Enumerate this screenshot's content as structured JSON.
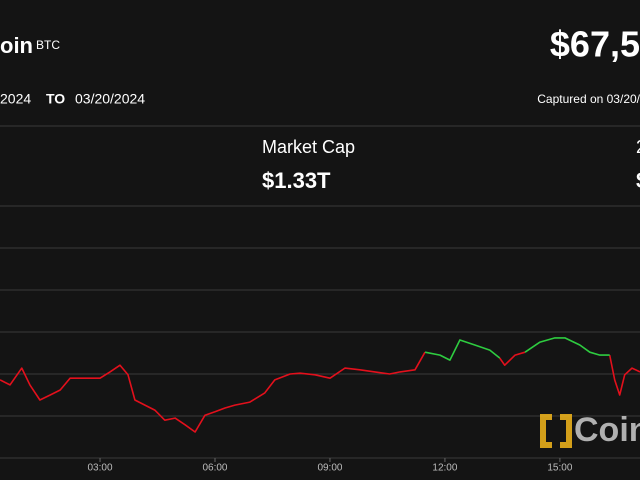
{
  "header": {
    "name": "oin",
    "symbol": "BTC",
    "price": "$67,5",
    "from": "2024",
    "to_label": "TO",
    "to": "03/20/2024",
    "captured": "Captured on 03/20/"
  },
  "stats": [
    {
      "label": "Market Cap",
      "value": "$1.33T"
    },
    {
      "label": "2",
      "value": "$"
    }
  ],
  "watermark": "Coin",
  "chart_data": {
    "type": "line",
    "x": [
      0.39,
      0.65,
      0.96,
      1.17,
      1.43,
      1.7,
      1.96,
      2.22,
      2.61,
      3.0,
      3.26,
      3.52,
      3.73,
      3.91,
      4.17,
      4.43,
      4.69,
      4.96,
      5.22,
      5.48,
      5.74,
      6.0,
      6.26,
      6.52,
      6.91,
      7.3,
      7.56,
      7.96,
      8.22,
      8.61,
      9.0,
      9.39,
      9.78,
      10.17,
      10.56,
      10.83,
      11.22,
      11.48,
      11.87,
      12.13,
      12.39,
      12.78,
      13.17,
      13.43,
      13.56,
      13.83,
      14.09,
      14.48,
      14.87,
      15.13,
      15.52,
      15.78,
      16.04,
      16.3,
      16.43,
      16.56,
      16.69,
      16.88,
      17.09
    ],
    "series": [
      {
        "color": "#e3101c",
        "values": [
          1.86,
          1.74,
          2.14,
          1.74,
          1.38,
          1.5,
          1.62,
          1.9,
          1.9,
          1.9,
          2.05,
          2.21,
          1.98,
          1.38,
          1.26,
          1.14,
          0.9,
          0.95,
          0.79,
          0.62,
          1.02,
          1.1,
          1.19,
          1.26,
          1.33,
          1.55,
          1.86,
          2.0,
          2.02,
          1.98,
          1.9,
          2.14,
          2.1,
          2.05,
          2.0,
          2.05,
          2.1,
          2.52,
          null,
          null,
          null,
          null,
          null,
          2.38,
          2.21,
          2.45,
          2.52,
          null,
          null,
          null,
          null,
          null,
          null,
          2.45,
          1.86,
          1.5,
          1.98,
          2.14,
          2.05
        ]
      },
      {
        "color": "#2ecc40",
        "values": [
          null,
          null,
          null,
          null,
          null,
          null,
          null,
          null,
          null,
          null,
          null,
          null,
          null,
          null,
          null,
          null,
          null,
          null,
          null,
          null,
          null,
          null,
          null,
          null,
          null,
          null,
          null,
          null,
          null,
          null,
          null,
          null,
          null,
          null,
          null,
          null,
          null,
          2.52,
          2.45,
          2.33,
          2.81,
          2.69,
          2.57,
          2.38,
          null,
          null,
          2.52,
          2.76,
          2.86,
          2.86,
          2.69,
          2.52,
          2.45,
          2.45,
          null,
          null,
          null,
          null,
          null
        ]
      }
    ],
    "xlim": [
      0.39,
      17.09
    ],
    "xticks": [
      {
        "value": 3,
        "label": "03:00"
      },
      {
        "value": 6,
        "label": "06:00"
      },
      {
        "value": 9,
        "label": "09:00"
      },
      {
        "value": 12,
        "label": "12:00"
      },
      {
        "value": 15,
        "label": "15:00"
      }
    ],
    "ylim": [
      0,
      6
    ],
    "yticks": [
      0,
      1,
      2,
      3,
      4,
      5,
      6
    ],
    "grid": true
  }
}
